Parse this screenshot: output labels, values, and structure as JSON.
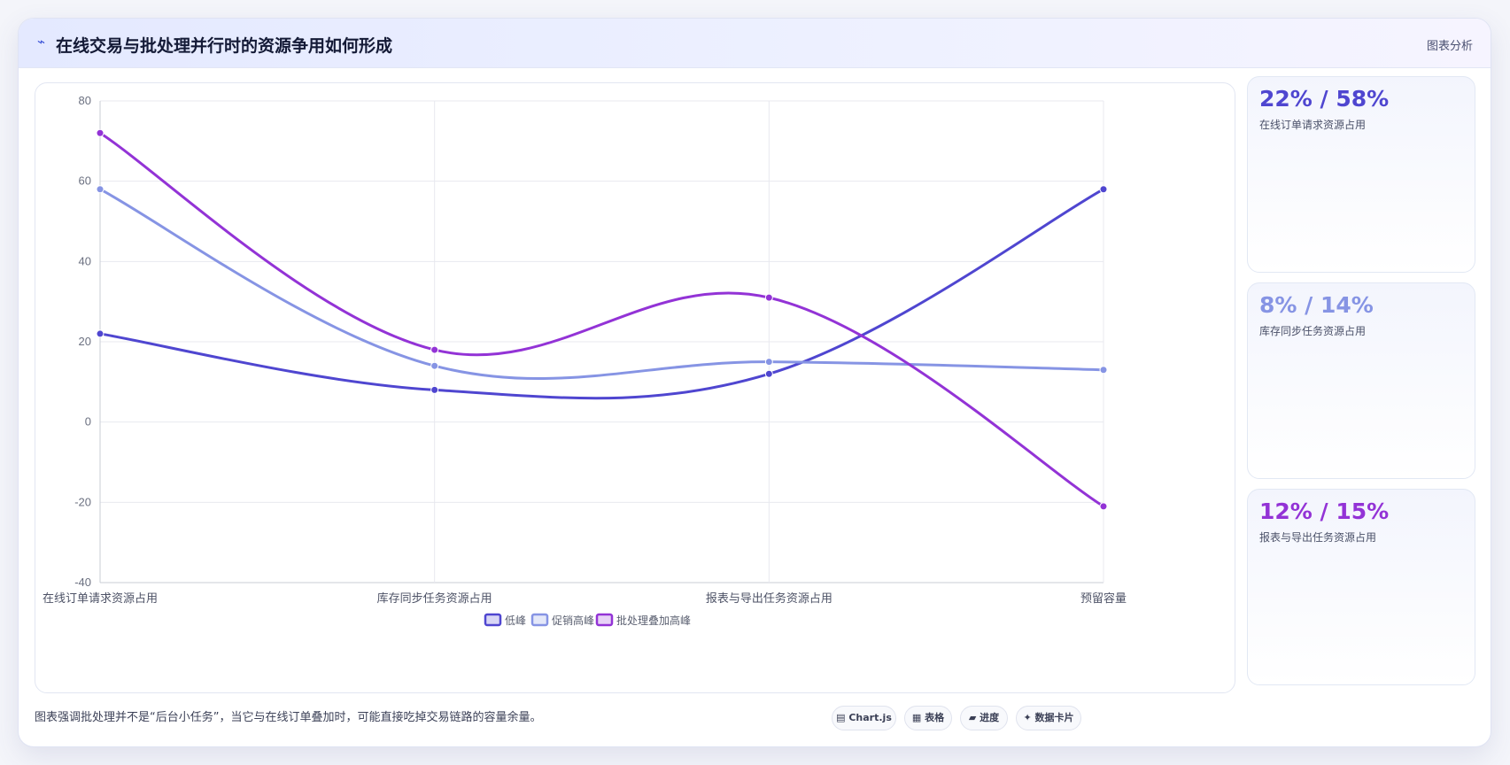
{
  "header": {
    "icon": "pulse-icon",
    "title": "在线交易与批处理并行时的资源争用如何形成",
    "tag": "图表分析"
  },
  "chart_data": {
    "type": "line",
    "categories": [
      "在线订单请求资源占用",
      "库存同步任务资源占用",
      "报表与导出任务资源占用",
      "预留容量"
    ],
    "series": [
      {
        "name": "低峰",
        "values": [
          22,
          8,
          12,
          58
        ],
        "color": "#4f46d0"
      },
      {
        "name": "促销高峰",
        "values": [
          58,
          14,
          15,
          13
        ],
        "color": "#8694e4"
      },
      {
        "name": "批处理叠加高峰",
        "values": [
          72,
          18,
          31,
          -21
        ],
        "color": "#9333d6"
      }
    ],
    "ylim": [
      -40,
      80
    ],
    "yticks": [
      "80",
      "60",
      "40",
      "20",
      "0",
      "-20",
      "-40"
    ],
    "grid": true,
    "legend": "bottom"
  },
  "stats": [
    {
      "value": "22% / 58%",
      "label": "在线订单请求资源占用",
      "color": "#4f46d0"
    },
    {
      "value": "8% / 14%",
      "label": "库存同步任务资源占用",
      "color": "#8694e4"
    },
    {
      "value": "12% / 15%",
      "label": "报表与导出任务资源占用",
      "color": "#9333d6"
    }
  ],
  "footnote": "图表强调批处理并不是“后台小任务”，当它与在线订单叠加时，可能直接吃掉交易链路的容量余量。",
  "pills": [
    {
      "icon": "chart-icon",
      "glyph": "▤",
      "label": "Chart.js"
    },
    {
      "icon": "table-icon",
      "glyph": "▦",
      "label": "表格"
    },
    {
      "icon": "progress-icon",
      "glyph": "▰",
      "label": "进度"
    },
    {
      "icon": "sparkle-icon",
      "glyph": "✦",
      "label": "数据卡片"
    }
  ]
}
